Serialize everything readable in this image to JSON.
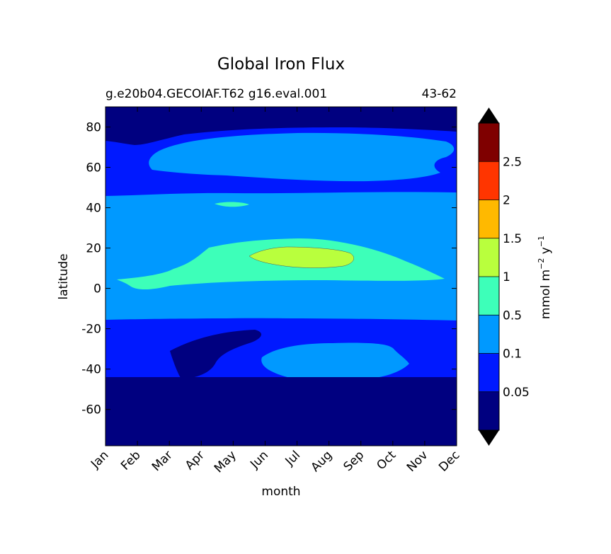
{
  "chart_data": {
    "type": "heatmap",
    "title": "Global Iron Flux",
    "subtitle_left": "g.e20b04.GECOIAF.T62 g16.eval.001",
    "subtitle_right": "43-62",
    "xlabel": "month",
    "ylabel": "latitude",
    "x_categories": [
      "Jan",
      "Feb",
      "Mar",
      "Apr",
      "May",
      "Jun",
      "Jul",
      "Aug",
      "Sep",
      "Oct",
      "Nov",
      "Dec"
    ],
    "ylim": [
      -78,
      90
    ],
    "y_ticks": [
      "-60",
      "-40",
      "-20",
      "0",
      "20",
      "40",
      "60",
      "80"
    ],
    "y_tick_values": [
      -60,
      -40,
      -20,
      0,
      20,
      40,
      60,
      80
    ],
    "colorbar": {
      "label": "mmol m",
      "label_exp1": "−2",
      "label_mid": " y",
      "label_exp2": "−1",
      "tick_labels": [
        "0.05",
        "0.1",
        "0.5",
        "1",
        "1.5",
        "2",
        "2.5"
      ],
      "levels": [
        0.05,
        0.1,
        0.5,
        1,
        1.5,
        2,
        2.5
      ],
      "colors": [
        "#000080",
        "#0019ff",
        "#0099ff",
        "#3dffb9",
        "#b9ff3d",
        "#ffb900",
        "#ff3500",
        "#7f0000"
      ],
      "extend": "both"
    },
    "regions": [
      {
        "name": "latitude-band-southern-ocean",
        "level_index": 0,
        "lat_range": [
          -78,
          -45
        ],
        "months": "Jan-Dec"
      },
      {
        "name": "latitude-band-south-mid",
        "level_index": 1,
        "lat_range": [
          -45,
          -16
        ],
        "months": "Jan-Dec"
      },
      {
        "name": "region-south-low-patch",
        "level_index": 0,
        "lat_range": [
          -45,
          -22
        ],
        "months": "Mar-Jun"
      },
      {
        "name": "region-south-mid-patch",
        "level_index": 2,
        "lat_range": [
          -45,
          -25
        ],
        "months": "Jul-Oct"
      },
      {
        "name": "latitude-band-tropics",
        "level_index": 2,
        "lat_range": [
          -16,
          45
        ],
        "months": "Jan-Dec"
      },
      {
        "name": "region-tropical-band",
        "level_index": 3,
        "lat_range": [
          0,
          24
        ],
        "months": "Jan-Dec"
      },
      {
        "name": "region-tropical-peak",
        "level_index": 4,
        "lat_range": [
          10,
          20
        ],
        "months": "Jun-Aug"
      },
      {
        "name": "region-north-small-patch",
        "level_index": 3,
        "lat_range": [
          39,
          42
        ],
        "months": "May"
      },
      {
        "name": "latitude-band-north-mid",
        "level_index": 1,
        "lat_range": [
          45,
          90
        ],
        "months": "Jan-Dec"
      },
      {
        "name": "region-north-mid-patch",
        "level_index": 2,
        "lat_range": [
          54,
          73
        ],
        "months": "Mar-Nov"
      },
      {
        "name": "region-arctic",
        "level_index": 0,
        "lat_range": [
          73,
          90
        ],
        "months": "Jan-Dec"
      }
    ]
  }
}
